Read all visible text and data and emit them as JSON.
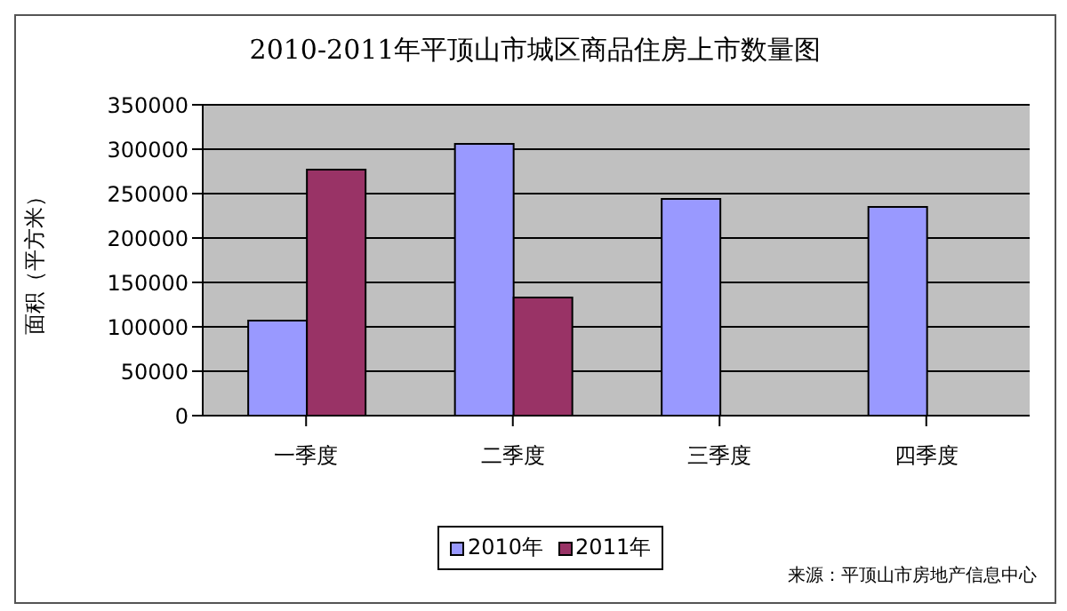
{
  "chart_data": {
    "type": "bar",
    "title": "2010-2011年平顶山市城区商品住房上市数量图",
    "ylabel": "面积（平方米）",
    "categories": [
      "一季度",
      "二季度",
      "三季度",
      "四季度"
    ],
    "series": [
      {
        "name": "2010年",
        "color": "#9999ff",
        "values": [
          107000,
          306000,
          244000,
          235000
        ]
      },
      {
        "name": "2011年",
        "color": "#993366",
        "values": [
          277000,
          133000,
          null,
          null
        ]
      }
    ],
    "ylim": [
      0,
      350000
    ],
    "yticks": [
      0,
      50000,
      100000,
      150000,
      200000,
      250000,
      300000,
      350000
    ],
    "grid": "y",
    "legend": "bottom",
    "annotations": [
      "来源：平顶山市房地产信息中心"
    ]
  }
}
